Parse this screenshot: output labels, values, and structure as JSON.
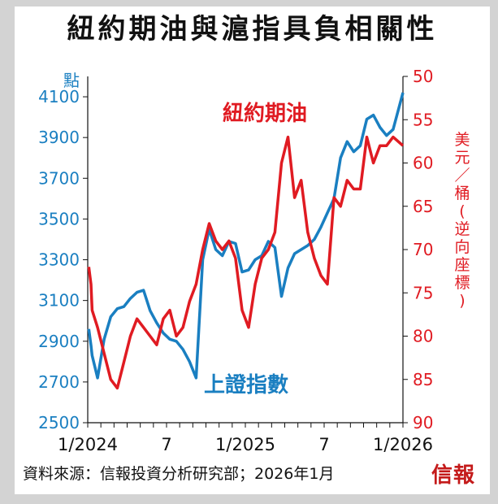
{
  "title": "紐約期油與滬指具負相關性",
  "footer": {
    "source": "資料來源：信報投資分析研究部；2026年1月",
    "brand": "信報"
  },
  "colors": {
    "left_axis": "#1a7fc1",
    "right_axis": "#e01b22",
    "sse_line": "#1a7fc1",
    "oil_line": "#e01b22"
  },
  "chart_data": {
    "type": "line",
    "title": "紐約期油與滬指具負相關性",
    "x_ticks": [
      "1/2024",
      "7",
      "1/2025",
      "7",
      "1/2026"
    ],
    "left_axis": {
      "label": "點",
      "ticks": [
        2500,
        2700,
        2900,
        3100,
        3300,
        3500,
        3700,
        3900,
        4100
      ],
      "range": [
        2500,
        4200
      ]
    },
    "right_axis": {
      "label": "美元／桶(逆向座標)",
      "inverted": true,
      "ticks": [
        50,
        55,
        60,
        65,
        70,
        75,
        80,
        85,
        90
      ],
      "range": [
        50,
        90
      ]
    },
    "series": [
      {
        "name": "上證指數",
        "axis": "left",
        "x": [
          "2024-01",
          "2024-01",
          "2024-01",
          "2024-02",
          "2024-02",
          "2024-03",
          "2024-03",
          "2024-04",
          "2024-04",
          "2024-05",
          "2024-05",
          "2024-06",
          "2024-06",
          "2024-07",
          "2024-07",
          "2024-08",
          "2024-08",
          "2024-09",
          "2024-09",
          "2024-10",
          "2024-10",
          "2024-11",
          "2024-11",
          "2024-12",
          "2024-12",
          "2025-01",
          "2025-01",
          "2025-02",
          "2025-02",
          "2025-03",
          "2025-03",
          "2025-04",
          "2025-04",
          "2025-05",
          "2025-05",
          "2025-06",
          "2025-06",
          "2025-07",
          "2025-07",
          "2025-08",
          "2025-08",
          "2025-09",
          "2025-09",
          "2025-10",
          "2025-10",
          "2025-11",
          "2025-11",
          "2025-12",
          "2025-12",
          "2026-01"
        ],
        "y": [
          2960,
          2880,
          2830,
          2720,
          2910,
          3020,
          3060,
          3070,
          3110,
          3140,
          3150,
          3050,
          2990,
          2940,
          2910,
          2900,
          2860,
          2800,
          2720,
          3300,
          3450,
          3350,
          3320,
          3390,
          3380,
          3240,
          3250,
          3300,
          3320,
          3390,
          3360,
          3120,
          3260,
          3330,
          3350,
          3370,
          3400,
          3460,
          3530,
          3600,
          3800,
          3880,
          3830,
          3860,
          3990,
          4010,
          3950,
          3910,
          3940,
          4120
        ]
      },
      {
        "name": "紐約期油",
        "axis": "right",
        "x": [
          "2024-01",
          "2024-01",
          "2024-01",
          "2024-02",
          "2024-02",
          "2024-03",
          "2024-03",
          "2024-04",
          "2024-04",
          "2024-05",
          "2024-05",
          "2024-06",
          "2024-06",
          "2024-07",
          "2024-07",
          "2024-08",
          "2024-08",
          "2024-09",
          "2024-09",
          "2024-10",
          "2024-10",
          "2024-11",
          "2024-11",
          "2024-12",
          "2024-12",
          "2025-01",
          "2025-01",
          "2025-02",
          "2025-02",
          "2025-03",
          "2025-03",
          "2025-04",
          "2025-04",
          "2025-05",
          "2025-05",
          "2025-06",
          "2025-06",
          "2025-07",
          "2025-07",
          "2025-08",
          "2025-08",
          "2025-09",
          "2025-09",
          "2025-10",
          "2025-10",
          "2025-11",
          "2025-11",
          "2025-12",
          "2025-12",
          "2026-01"
        ],
        "y": [
          72,
          74,
          77,
          79,
          82,
          85,
          86,
          83,
          80,
          78,
          79,
          80,
          81,
          78,
          77,
          80,
          79,
          76,
          74,
          70,
          67,
          69,
          70,
          69,
          71,
          77,
          79,
          74,
          71,
          70,
          68,
          60,
          57,
          64,
          62,
          68,
          71,
          73,
          74,
          64,
          65,
          62,
          63,
          63,
          57,
          60,
          58,
          58,
          57,
          58
        ]
      }
    ],
    "annotations": [
      "紐約期油",
      "上證指數"
    ]
  }
}
